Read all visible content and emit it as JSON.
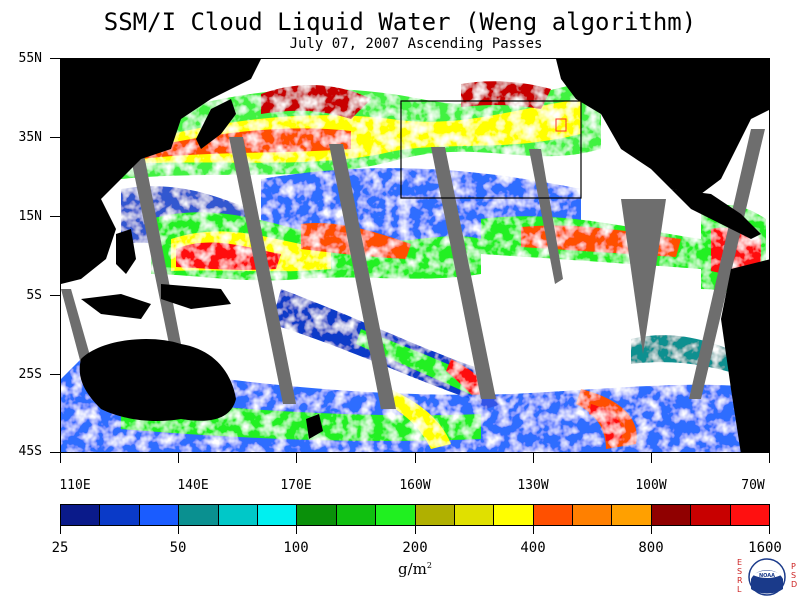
{
  "title": "SSM/I Cloud Liquid Water (Weng algorithm)",
  "subtitle": "July 07, 2007  Ascending Passes",
  "lat_labels": [
    "55N",
    "35N",
    "15N",
    "5S",
    "25S",
    "45S"
  ],
  "lon_labels": [
    "110E",
    "140E",
    "170E",
    "160W",
    "130W",
    "100W",
    "70W"
  ],
  "colorbar": {
    "labels": [
      "25",
      "50",
      "100",
      "200",
      "400",
      "800",
      "1600"
    ],
    "units_base": "g/m",
    "units_sup": "2",
    "colors": [
      "#0a1a8a",
      "#0a3ac8",
      "#1a5cff",
      "#0a9090",
      "#00c8c8",
      "#00f0f0",
      "#0a900a",
      "#10c010",
      "#20f020",
      "#b0b000",
      "#e0e000",
      "#ffff00",
      "#ff5000",
      "#ff8000",
      "#ffa000",
      "#900000",
      "#c80000",
      "#ff1010"
    ]
  },
  "logo": {
    "left_letters": "ESRL",
    "right_letters": "PSD",
    "center_text": "NOAA"
  },
  "colors": {
    "land": "#000000",
    "no_data_swath": "#6e6e6e",
    "ocean_clear": "#ffffff",
    "box_outline": "#000000"
  }
}
